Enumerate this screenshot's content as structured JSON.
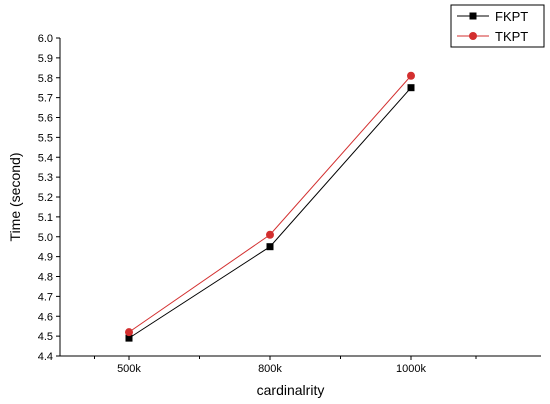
{
  "chart_data": {
    "type": "line",
    "categories": [
      "500k",
      "800k",
      "1000k"
    ],
    "xlabel": "cardinalrity",
    "ylabel": "Time (second)",
    "ylim": [
      4.4,
      6.0
    ],
    "yticks": [
      "4.4",
      "4.5",
      "4.6",
      "4.7",
      "4.8",
      "4.9",
      "5.0",
      "5.1",
      "5.2",
      "5.3",
      "5.4",
      "5.5",
      "5.6",
      "5.7",
      "5.8",
      "5.9",
      "6.0"
    ],
    "grid": false,
    "legend_position": "top-right",
    "series": [
      {
        "name": "FKPT",
        "values": [
          4.49,
          4.95,
          5.75
        ],
        "color": "#000000",
        "marker": "square"
      },
      {
        "name": "TKPT",
        "values": [
          4.52,
          5.01,
          5.81
        ],
        "color": "#d32f2f",
        "marker": "circle"
      }
    ]
  }
}
